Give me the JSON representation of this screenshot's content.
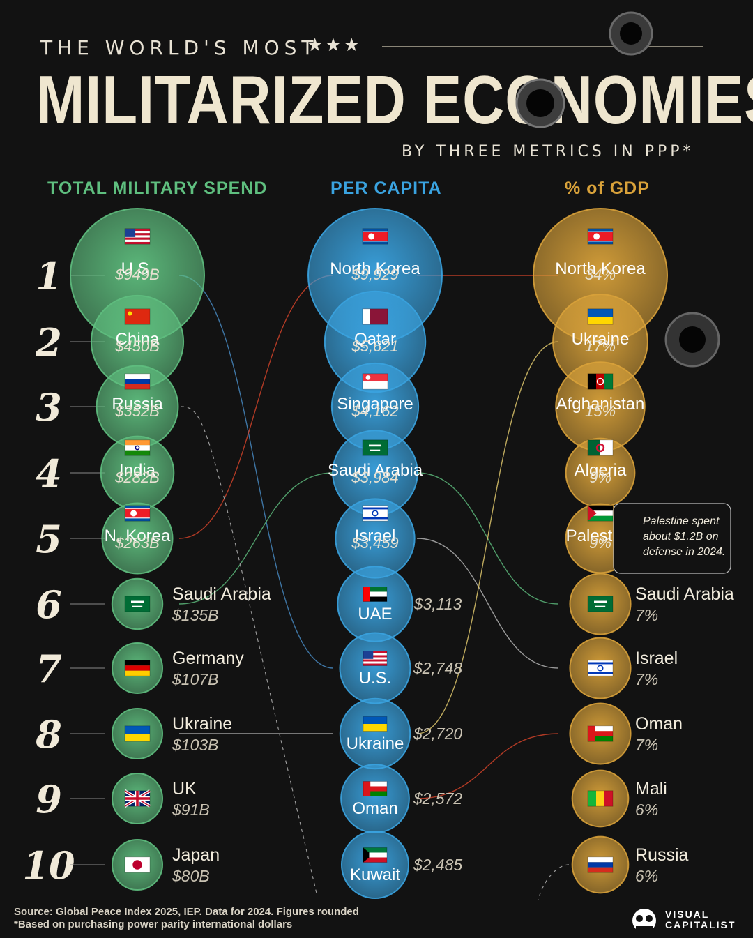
{
  "header": {
    "kicker": "THE WORLD'S MOST",
    "stars": "★★★",
    "title": "MILITARIZED ECONOMIES",
    "subtitle": "BY THREE METRICS IN PPP*"
  },
  "colors": {
    "background": "#121212",
    "total_spend": "#5fbf7f",
    "per_capita": "#3aa3e0",
    "pct_gdp": "#d9a23a",
    "title": "#efe6cf"
  },
  "chart_data": {
    "type": "bubble-ranking",
    "ranks": [
      "1",
      "2",
      "3",
      "4",
      "5",
      "6",
      "7",
      "8",
      "9",
      "10"
    ],
    "columns": [
      {
        "key": "total_spend",
        "heading": "TOTAL MILITARY SPEND",
        "unit": "USD (PPP)",
        "entries": [
          {
            "name": "U.S.",
            "label": "$949B",
            "value": 949,
            "flag": "us-flag"
          },
          {
            "name": "China",
            "label": "$450B",
            "value": 450,
            "flag": "china-flag"
          },
          {
            "name": "Russia",
            "label": "$352B",
            "value": 352,
            "flag": "russia-flag"
          },
          {
            "name": "India",
            "label": "$282B",
            "value": 282,
            "flag": "india-flag"
          },
          {
            "name": "N. Korea",
            "label": "$263B",
            "value": 263,
            "flag": "north-korea-flag"
          },
          {
            "name": "Saudi Arabia",
            "label": "$135B",
            "value": 135,
            "flag": "saudi-arabia-flag"
          },
          {
            "name": "Germany",
            "label": "$107B",
            "value": 107,
            "flag": "germany-flag"
          },
          {
            "name": "Ukraine",
            "label": "$103B",
            "value": 103,
            "flag": "ukraine-flag"
          },
          {
            "name": "UK",
            "label": "$91B",
            "value": 91,
            "flag": "uk-flag"
          },
          {
            "name": "Japan",
            "label": "$80B",
            "value": 80,
            "flag": "japan-flag"
          }
        ]
      },
      {
        "key": "per_capita",
        "heading": "PER CAPITA",
        "unit": "USD (PPP)",
        "entries": [
          {
            "name": "North Korea",
            "label": "$9,929",
            "value": 9929,
            "flag": "north-korea-flag"
          },
          {
            "name": "Qatar",
            "label": "$5,621",
            "value": 5621,
            "flag": "qatar-flag"
          },
          {
            "name": "Singapore",
            "label": "$4,162",
            "value": 4162,
            "flag": "singapore-flag"
          },
          {
            "name": "Saudi Arabia",
            "label": "$3,984",
            "value": 3984,
            "flag": "saudi-arabia-flag"
          },
          {
            "name": "Israel",
            "label": "$3,459",
            "value": 3459,
            "flag": "israel-flag"
          },
          {
            "name": "UAE",
            "label": "$3,113",
            "value": 3113,
            "flag": "uae-flag"
          },
          {
            "name": "U.S.",
            "label": "$2,748",
            "value": 2748,
            "flag": "us-flag"
          },
          {
            "name": "Ukraine",
            "label": "$2,720",
            "value": 2720,
            "flag": "ukraine-flag"
          },
          {
            "name": "Oman",
            "label": "$2,572",
            "value": 2572,
            "flag": "oman-flag"
          },
          {
            "name": "Kuwait",
            "label": "$2,485",
            "value": 2485,
            "flag": "kuwait-flag"
          }
        ]
      },
      {
        "key": "pct_gdp",
        "heading": "% of GDP",
        "unit": "%",
        "entries": [
          {
            "name": "North Korea",
            "label": "34%",
            "value": 34,
            "flag": "north-korea-flag"
          },
          {
            "name": "Ukraine",
            "label": "17%",
            "value": 17,
            "flag": "ukraine-flag"
          },
          {
            "name": "Afghanistan",
            "label": "15%",
            "value": 15,
            "flag": "afghanistan-flag"
          },
          {
            "name": "Algeria",
            "label": "9%",
            "value": 9,
            "flag": "algeria-flag"
          },
          {
            "name": "Palestine",
            "label": "9%",
            "value": 9,
            "flag": "palestine-flag"
          },
          {
            "name": "Saudi Arabia",
            "label": "7%",
            "value": 7,
            "flag": "saudi-arabia-flag"
          },
          {
            "name": "Israel",
            "label": "7%",
            "value": 7,
            "flag": "israel-flag"
          },
          {
            "name": "Oman",
            "label": "7%",
            "value": 7,
            "flag": "oman-flag"
          },
          {
            "name": "Mali",
            "label": "6%",
            "value": 6,
            "flag": "mali-flag"
          },
          {
            "name": "Russia",
            "label": "6%",
            "value": 6,
            "flag": "russia-flag"
          }
        ]
      }
    ],
    "annotation": {
      "lines": [
        "Palestine spent",
        "about $1.2B on",
        "defense in 2024."
      ]
    }
  },
  "footer": {
    "source": "Source: Global Peace Index 2025, IEP. Data for 2024. Figures rounded",
    "note": "*Based on purchasing power parity international dollars",
    "brand_line1": "VISUAL",
    "brand_line2": "CAPITALIST"
  }
}
